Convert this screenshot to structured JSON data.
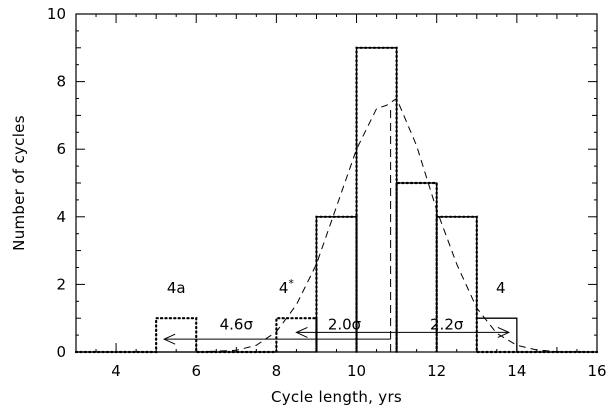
{
  "chart_data": {
    "type": "bar",
    "title": "",
    "xlabel": "Cycle length, yrs",
    "ylabel": "Number of cycles",
    "xlim": [
      3,
      16
    ],
    "ylim": [
      0,
      10
    ],
    "xticks": [
      4,
      6,
      8,
      10,
      12,
      14,
      16
    ],
    "yticks": [
      0,
      2,
      4,
      6,
      8,
      10
    ],
    "grid": false,
    "legend": "none",
    "series": [
      {
        "style": "solid",
        "bins": [
          {
            "x0": 9,
            "x1": 10,
            "value": 4
          },
          {
            "x0": 10,
            "x1": 11,
            "value": 9
          },
          {
            "x0": 11,
            "x1": 12,
            "value": 5
          },
          {
            "x0": 12,
            "x1": 13,
            "value": 4
          },
          {
            "x0": 13,
            "x1": 14,
            "value": 1
          }
        ]
      },
      {
        "style": "dotted",
        "bins": [
          {
            "x0": 5,
            "x1": 6,
            "value": 1
          },
          {
            "x0": 8,
            "x1": 9,
            "value": 1
          },
          {
            "x0": 9,
            "x1": 10,
            "value": 4
          },
          {
            "x0": 10,
            "x1": 11,
            "value": 9
          },
          {
            "x0": 11,
            "x1": 12,
            "value": 5
          },
          {
            "x0": 12,
            "x1": 13,
            "value": 4
          }
        ]
      },
      {
        "style": "dashed",
        "x": [
          3.0,
          6.0,
          7.0,
          7.5,
          8.0,
          8.5,
          9.0,
          9.5,
          10.0,
          10.5,
          10.75,
          11.0,
          11.5,
          12.0,
          12.5,
          13.0,
          13.5,
          14.0,
          14.5,
          15.0,
          16.0
        ],
        "y": [
          0.0,
          0.0,
          0.05,
          0.2,
          0.6,
          1.4,
          2.6,
          4.3,
          6.0,
          7.2,
          7.3,
          7.5,
          6.1,
          4.2,
          2.6,
          1.3,
          0.55,
          0.2,
          0.06,
          0.01,
          0.0
        ]
      }
    ],
    "annotations": {
      "texts": [
        {
          "text": "4a",
          "x": 5.5,
          "y": 1.75
        },
        {
          "text": "4*",
          "x": 8.25,
          "y": 1.75
        },
        {
          "text": "4",
          "x": 13.6,
          "y": 1.75
        },
        {
          "text": "4.6σ",
          "x": 7.0,
          "y": 0.67
        },
        {
          "text": "2.0σ",
          "x": 9.7,
          "y": 0.67
        },
        {
          "text": "2.2σ",
          "x": 12.25,
          "y": 0.67
        }
      ],
      "arrows": [
        {
          "from": 10.85,
          "to": 5.2,
          "y": 0.38
        },
        {
          "from": 10.85,
          "to": 8.5,
          "y": 0.58
        },
        {
          "from": 10.85,
          "to": 13.8,
          "y": 0.58
        }
      ],
      "vline": {
        "x": 10.85,
        "y0": 0,
        "y1": 7.3
      }
    }
  }
}
